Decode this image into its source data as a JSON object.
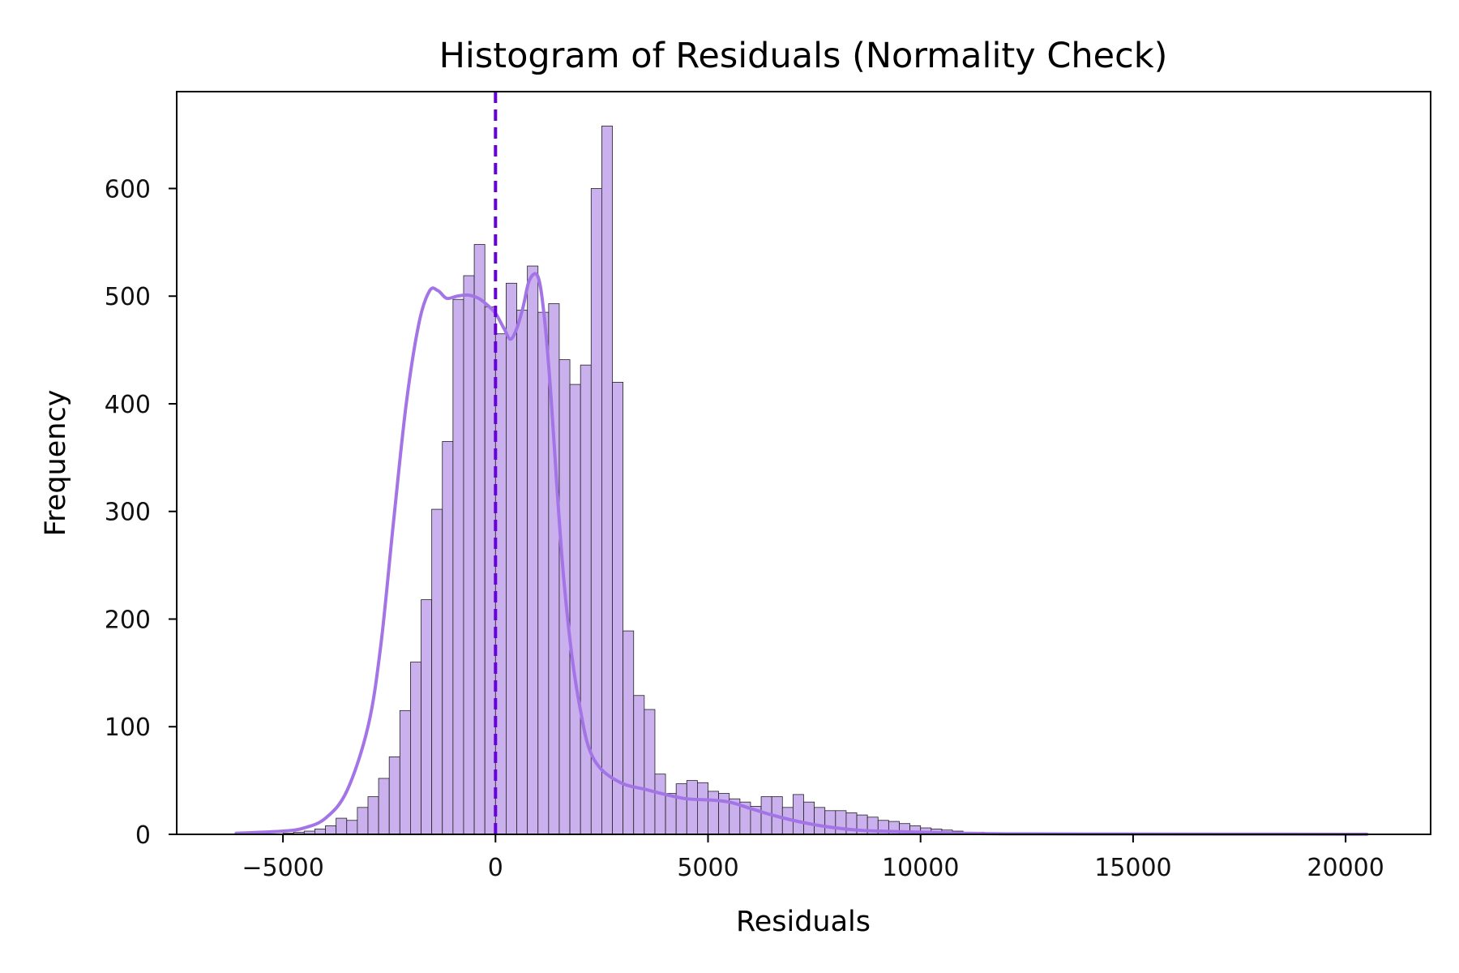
{
  "chart_data": {
    "type": "bar",
    "title": "Histogram of Residuals (Normality Check)",
    "xlabel": "Residuals",
    "ylabel": "Frequency",
    "xlim": [
      -7500,
      22000
    ],
    "ylim": [
      0,
      690
    ],
    "xticks": [
      -5000,
      0,
      5000,
      10000,
      15000,
      20000
    ],
    "xtick_labels": [
      "−5000",
      "0",
      "5000",
      "10000",
      "15000",
      "20000"
    ],
    "yticks": [
      0,
      100,
      200,
      300,
      400,
      500,
      600
    ],
    "ytick_labels": [
      "0",
      "100",
      "200",
      "300",
      "400",
      "500",
      "600"
    ],
    "grid": false,
    "legend": "none",
    "bins": {
      "start": -5000,
      "width": 250,
      "counts": [
        1,
        2,
        3,
        5,
        8,
        15,
        13,
        25,
        35,
        52,
        72,
        115,
        160,
        218,
        302,
        365,
        497,
        519,
        548,
        490,
        465,
        512,
        487,
        528,
        485,
        493,
        441,
        418,
        436,
        600,
        658,
        420,
        189,
        129,
        116,
        56,
        38,
        47,
        50,
        48,
        40,
        38,
        33,
        30,
        26,
        35,
        35,
        25,
        37,
        30,
        25,
        22,
        22,
        20,
        18,
        16,
        13,
        12,
        10,
        8,
        6,
        5,
        4,
        3,
        2,
        2,
        1,
        1,
        1,
        1,
        1
      ]
    },
    "kde": {
      "x": [
        -6100,
        -5000,
        -4500,
        -4000,
        -3500,
        -3000,
        -2700,
        -2400,
        -2100,
        -1800,
        -1550,
        -1350,
        -1150,
        -900,
        -650,
        -400,
        -200,
        0,
        200,
        350,
        500,
        650,
        800,
        1000,
        1150,
        1300,
        1450,
        1600,
        1800,
        2000,
        2200,
        2500,
        3000,
        3500,
        4000,
        4500,
        5000,
        5500,
        6000,
        6500,
        7000,
        7500,
        8000,
        8500,
        9000,
        10000,
        11000,
        12000,
        14000,
        17000,
        20500
      ],
      "y": [
        1,
        3,
        6,
        15,
        40,
        100,
        175,
        290,
        400,
        475,
        505,
        505,
        498,
        500,
        501,
        498,
        492,
        484,
        470,
        460,
        470,
        490,
        515,
        518,
        480,
        410,
        320,
        240,
        165,
        115,
        80,
        60,
        47,
        42,
        37,
        33,
        32,
        30,
        24,
        18,
        13,
        9,
        6,
        4,
        3,
        2,
        1,
        0.5,
        0.3,
        0.2,
        0.1
      ]
    },
    "reference_line": {
      "x": 0,
      "style": "dashed"
    },
    "colors": {
      "bar_fill": "#cbb0ee",
      "bar_edge": "#222222",
      "kde_line": "#a374e6",
      "reference_line": "#6600dd",
      "axis": "#000000"
    }
  }
}
